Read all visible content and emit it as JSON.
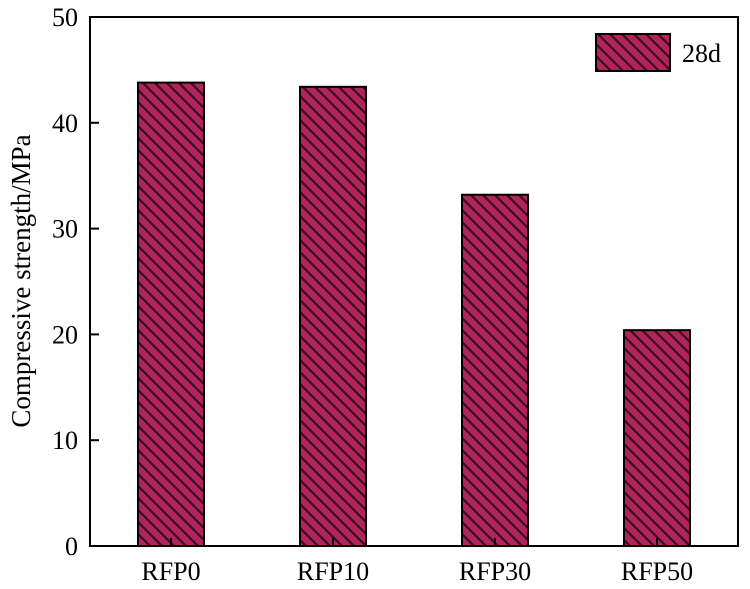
{
  "chart_data": {
    "type": "bar",
    "categories": [
      "RFP0",
      "RFP10",
      "RFP30",
      "RFP50"
    ],
    "series": [
      {
        "name": "28d",
        "values": [
          43.8,
          43.4,
          33.2,
          20.4
        ]
      }
    ],
    "title": "",
    "xlabel": "",
    "ylabel": "Compressive strength/MPa",
    "ylim": [
      0,
      50
    ],
    "yticks": [
      0,
      10,
      20,
      30,
      40,
      50
    ],
    "grid": false,
    "legend": "top-right",
    "bar_color": "#b0245c",
    "hatch_color": "#3a0a1f"
  }
}
